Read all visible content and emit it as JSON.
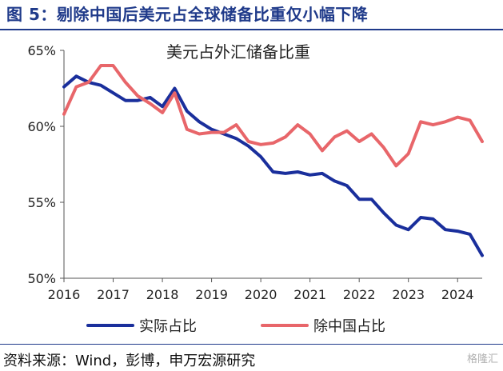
{
  "figure": {
    "title": "图 5：剔除中国后美元占全球储备比重仅小幅下降",
    "source": "资料来源：Wind，彭博，申万宏源研究",
    "watermark": "格隆汇"
  },
  "chart_data": {
    "type": "line",
    "title": "美元占外汇储备比重",
    "xlabel": "",
    "ylabel": "",
    "x_ticks": [
      "2016",
      "2017",
      "2018",
      "2019",
      "2020",
      "2021",
      "2022",
      "2023",
      "2024"
    ],
    "y_ticks": [
      "50%",
      "55%",
      "60%",
      "65%"
    ],
    "xlim": [
      2016,
      2024.5
    ],
    "ylim": [
      50,
      65
    ],
    "legend_position": "bottom",
    "x": [
      2016.0,
      2016.25,
      2016.5,
      2016.75,
      2017.0,
      2017.25,
      2017.5,
      2017.75,
      2018.0,
      2018.25,
      2018.5,
      2018.75,
      2019.0,
      2019.25,
      2019.5,
      2019.75,
      2020.0,
      2020.25,
      2020.5,
      2020.75,
      2021.0,
      2021.25,
      2021.5,
      2021.75,
      2022.0,
      2022.25,
      2022.5,
      2022.75,
      2023.0,
      2023.25,
      2023.5,
      2023.75,
      2024.0,
      2024.25,
      2024.5
    ],
    "series": [
      {
        "name": "实际占比",
        "color": "#1a2f9c",
        "values": [
          62.6,
          63.3,
          62.9,
          62.7,
          62.2,
          61.7,
          61.7,
          61.9,
          61.3,
          62.5,
          61.0,
          60.3,
          59.8,
          59.5,
          59.2,
          58.7,
          58.0,
          57.0,
          56.9,
          57.0,
          56.8,
          56.9,
          56.4,
          56.1,
          55.2,
          55.2,
          54.3,
          53.5,
          53.2,
          54.0,
          53.9,
          53.2,
          53.1,
          52.9,
          51.5
        ]
      },
      {
        "name": "除中国占比",
        "color": "#e8666a",
        "values": [
          60.8,
          62.6,
          62.9,
          64.0,
          64.0,
          62.9,
          62.0,
          61.5,
          60.9,
          62.2,
          59.8,
          59.5,
          59.6,
          59.6,
          60.1,
          59.0,
          58.8,
          58.9,
          59.3,
          60.1,
          59.5,
          58.4,
          59.3,
          59.7,
          59.0,
          59.5,
          58.6,
          57.4,
          58.2,
          60.3,
          60.1,
          60.3,
          60.6,
          60.4,
          59.0
        ]
      }
    ]
  }
}
